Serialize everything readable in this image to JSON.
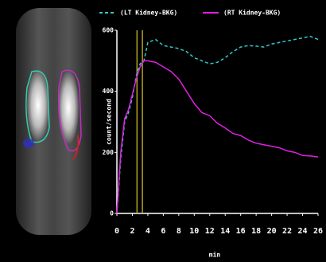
{
  "chart_data": {
    "type": "line",
    "x_label": "min",
    "y_label": "count/second",
    "x": [
      0,
      0.5,
      1,
      1.5,
      2,
      2.5,
      3,
      3.5,
      4,
      5,
      6,
      7,
      8,
      9,
      10,
      11,
      12,
      13,
      14,
      15,
      16,
      17,
      18,
      19,
      20,
      21,
      22,
      23,
      24,
      25,
      26
    ],
    "series": [
      {
        "name": "(LT Kidney-BKG)",
        "color": "#33c8c8",
        "style": "dashed",
        "values": [
          0,
          180,
          300,
          330,
          380,
          450,
          490,
          500,
          560,
          570,
          550,
          545,
          540,
          530,
          510,
          500,
          490,
          495,
          510,
          530,
          545,
          550,
          548,
          545,
          555,
          560,
          565,
          570,
          575,
          580,
          570
        ]
      },
      {
        "name": "(RT Kidney-BKG)",
        "color": "#e020e0",
        "style": "solid",
        "values": [
          0,
          200,
          310,
          340,
          390,
          440,
          480,
          500,
          500,
          495,
          480,
          465,
          440,
          400,
          360,
          330,
          320,
          295,
          280,
          262,
          255,
          240,
          230,
          225,
          220,
          215,
          205,
          200,
          190,
          188,
          185
        ]
      }
    ],
    "markers": [
      2.6,
      3.3
    ],
    "marker_color": "#b0a020",
    "xlim": [
      0,
      26
    ],
    "xticks": [
      0,
      2,
      4,
      6,
      8,
      10,
      12,
      14,
      16,
      18,
      20,
      22,
      24,
      26
    ],
    "ylim": [
      0,
      600
    ],
    "yticks": [
      0,
      200,
      400,
      600
    ]
  }
}
